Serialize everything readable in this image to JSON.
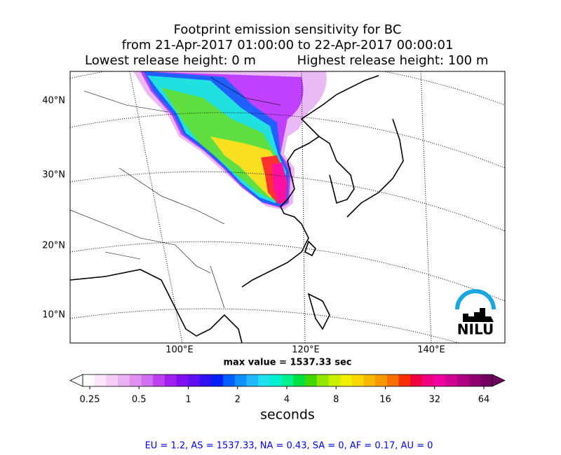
{
  "header": {
    "title": "Footprint emission sensitivity for BC",
    "period": "from 21-Apr-2017 01:00:00 to 22-Apr-2017 00:00:01",
    "lowest_release": "Lowest release height: 0 m",
    "highest_release": "Highest release height: 100 m"
  },
  "lat_labels": [
    "40°N",
    "30°N",
    "20°N",
    "10°N"
  ],
  "lon_labels": [
    "100°E",
    "120°E",
    "140°E"
  ],
  "max_value": "max value = 1537.33 sec",
  "logo": "NILU",
  "colorbar": {
    "label": "seconds",
    "log_scale": true,
    "lim": [
      0.25,
      64
    ],
    "ticks": [
      0.25,
      0.5,
      1,
      2,
      4,
      8,
      16,
      32,
      64
    ],
    "colors": [
      "#ffffff",
      "#fbe6fb",
      "#f4ccf6",
      "#eab0f2",
      "#e090f0",
      "#d070f0",
      "#c040f0",
      "#a020f0",
      "#8010f0",
      "#6010f0",
      "#3010f0",
      "#0020f8",
      "#0060ff",
      "#1090ff",
      "#20b8ff",
      "#20e0f0",
      "#00f0d0",
      "#00f090",
      "#00e040",
      "#40d800",
      "#90e800",
      "#c8f000",
      "#f0f000",
      "#f8d800",
      "#f8b800",
      "#f89800",
      "#f87000",
      "#f83000",
      "#f00040",
      "#f00080",
      "#f000a0",
      "#d00090",
      "#b00080",
      "#900070",
      "#700060"
    ]
  },
  "footer": "EU = 1.2,  AS = 1537.33,  NA = 0.43,  SA = 0,  AF = 0.17,  AU = 0"
}
